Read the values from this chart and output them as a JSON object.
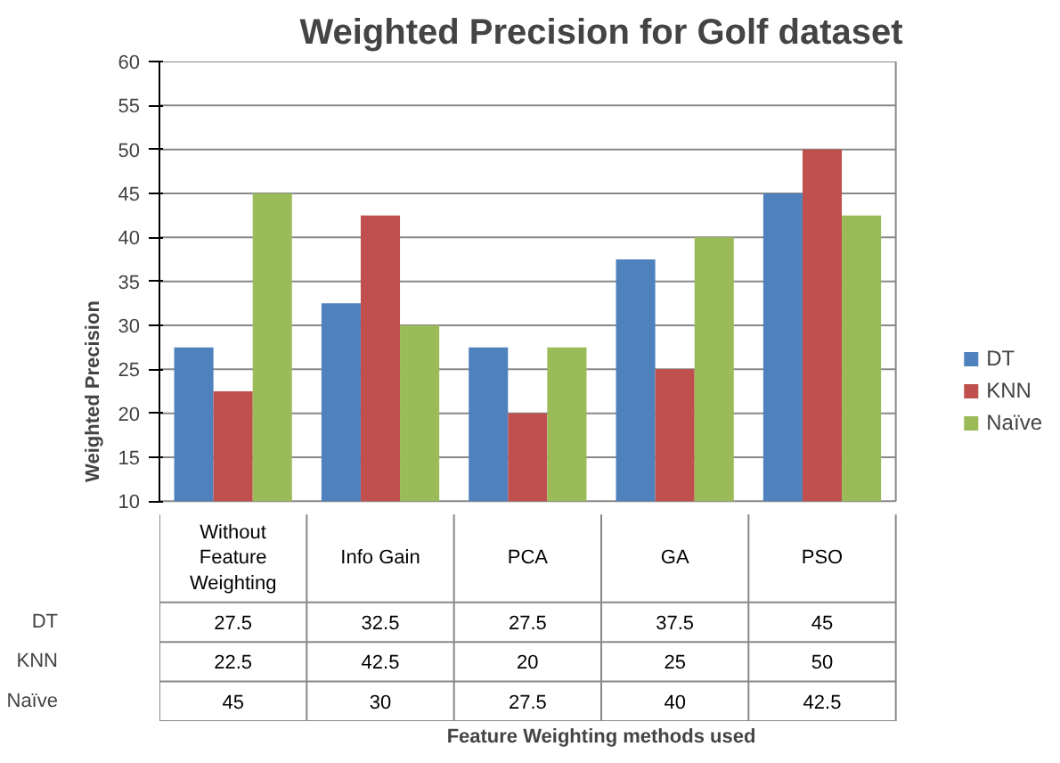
{
  "chart_data": {
    "type": "bar",
    "title": "Weighted Precision for Golf dataset",
    "annotations": [
      "Feature Weighting methods used"
    ],
    "ylabel": "Weighted Precision",
    "categories": [
      "Without Feature Weighting",
      "Info Gain",
      "PCA",
      "GA",
      "PSO"
    ],
    "series": [
      {
        "name": "DT",
        "color": "#4f81bd",
        "values": [
          27.5,
          32.5,
          27.5,
          37.5,
          45
        ]
      },
      {
        "name": "KNN",
        "color": "#c0504d",
        "values": [
          22.5,
          42.5,
          20,
          25,
          50
        ]
      },
      {
        "name": "Naïve",
        "color": "#9bbb59",
        "values": [
          45,
          30,
          27.5,
          40,
          42.5
        ]
      }
    ],
    "ylim": [
      10,
      60
    ],
    "yticks": [
      10,
      15,
      20,
      25,
      30,
      35,
      40,
      45,
      50,
      55,
      60
    ],
    "grid": "y",
    "legend": "right",
    "data_labels": true
  }
}
